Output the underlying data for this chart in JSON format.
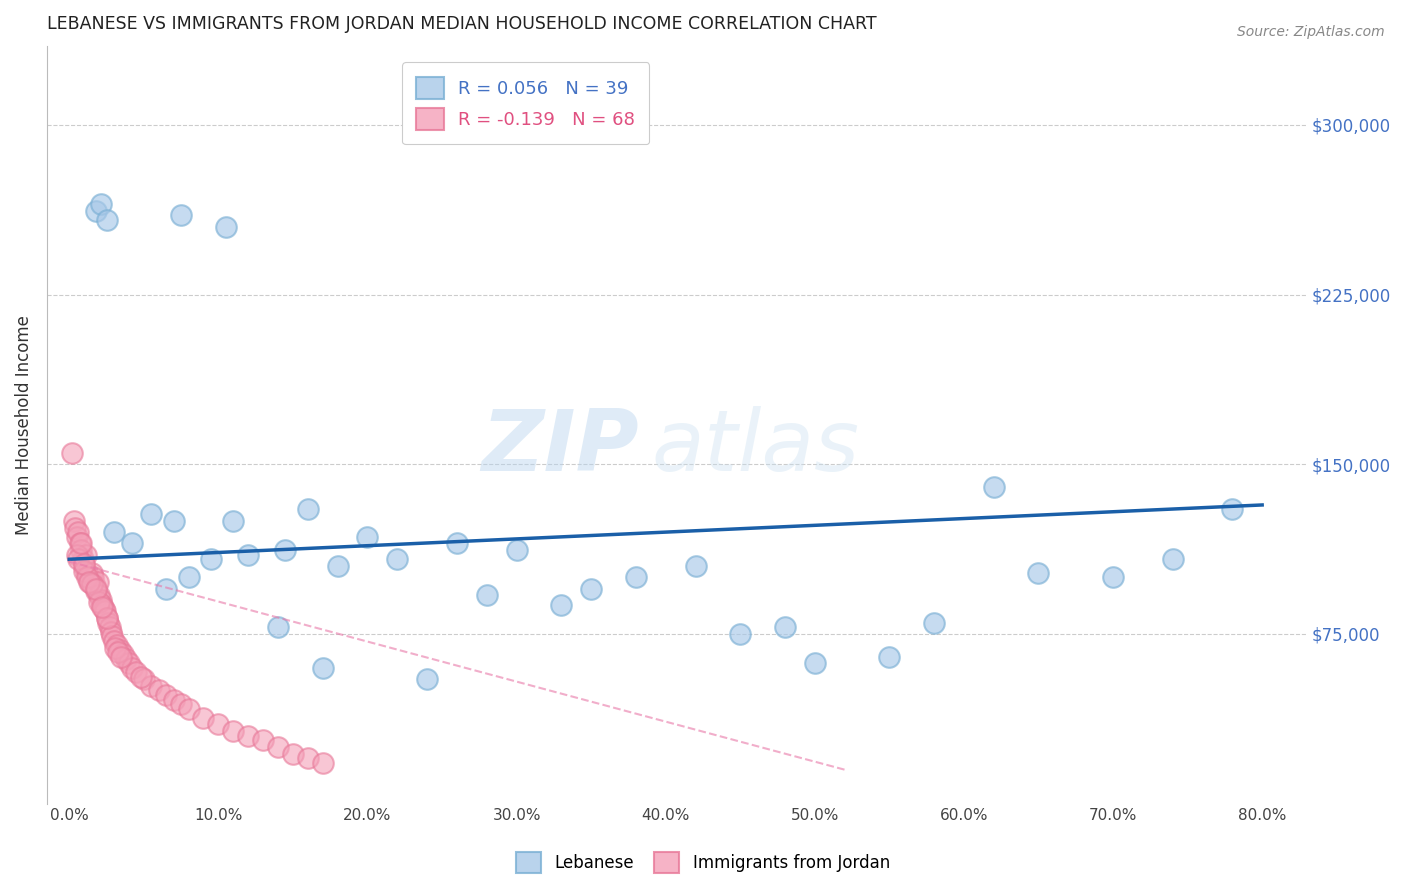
{
  "title": "LEBANESE VS IMMIGRANTS FROM JORDAN MEDIAN HOUSEHOLD INCOME CORRELATION CHART",
  "source": "Source: ZipAtlas.com",
  "ylabel": "Median Household Income",
  "watermark_zip": "ZIP",
  "watermark_atlas": "atlas",
  "legend_blue_r": "R = 0.056",
  "legend_blue_n": "N = 39",
  "legend_pink_r": "R = -0.139",
  "legend_pink_n": "N = 68",
  "ytick_labels": [
    "$75,000",
    "$150,000",
    "$225,000",
    "$300,000"
  ],
  "ytick_values": [
    75000,
    150000,
    225000,
    300000
  ],
  "xtick_labels": [
    "0.0%",
    "10.0%",
    "20.0%",
    "30.0%",
    "40.0%",
    "50.0%",
    "60.0%",
    "70.0%",
    "80.0%"
  ],
  "xtick_values": [
    0.0,
    10.0,
    20.0,
    30.0,
    40.0,
    50.0,
    60.0,
    70.0,
    80.0
  ],
  "ylim": [
    0,
    335000
  ],
  "xlim": [
    -1.5,
    83
  ],
  "blue_face_color": "#a8c8e8",
  "blue_edge_color": "#7aafd4",
  "pink_face_color": "#f4a0b8",
  "pink_edge_color": "#e87898",
  "trend_blue_color": "#1a5fa8",
  "trend_pink_color": "#e878a8",
  "grid_color": "#cccccc",
  "title_color": "#222222",
  "ytick_color": "#4472c4",
  "source_color": "#888888",
  "blue_x": [
    1.8,
    2.1,
    2.5,
    7.5,
    10.5,
    3.0,
    4.2,
    5.5,
    7.0,
    9.5,
    12.0,
    14.5,
    16.0,
    18.0,
    22.0,
    26.0,
    30.0,
    35.0,
    38.0,
    42.0,
    45.0,
    48.0,
    50.0,
    55.0,
    58.0,
    62.0,
    65.0,
    70.0,
    74.0,
    78.0,
    6.5,
    8.0,
    11.0,
    20.0,
    28.0,
    33.0,
    14.0,
    17.0,
    24.0
  ],
  "blue_y": [
    262000,
    265000,
    258000,
    260000,
    255000,
    120000,
    115000,
    128000,
    125000,
    108000,
    110000,
    112000,
    130000,
    105000,
    108000,
    115000,
    112000,
    95000,
    100000,
    105000,
    75000,
    78000,
    62000,
    65000,
    80000,
    140000,
    102000,
    100000,
    108000,
    130000,
    95000,
    100000,
    125000,
    118000,
    92000,
    88000,
    78000,
    60000,
    55000
  ],
  "pink_x": [
    0.2,
    0.3,
    0.4,
    0.5,
    0.6,
    0.7,
    0.8,
    0.9,
    1.0,
    1.1,
    1.2,
    1.3,
    1.4,
    1.5,
    1.6,
    1.7,
    1.8,
    1.9,
    2.0,
    2.1,
    2.2,
    2.3,
    2.4,
    2.5,
    2.6,
    2.7,
    2.8,
    2.9,
    3.0,
    3.2,
    3.4,
    3.6,
    3.8,
    4.0,
    4.2,
    4.5,
    5.0,
    5.5,
    6.0,
    6.5,
    7.0,
    7.5,
    8.0,
    9.0,
    10.0,
    11.0,
    12.0,
    13.0,
    14.0,
    15.0,
    16.0,
    17.0,
    3.1,
    3.3,
    3.5,
    4.8,
    0.5,
    0.6,
    1.0,
    1.2,
    1.5,
    2.0,
    2.5,
    0.8,
    1.0,
    1.3,
    1.8,
    2.2
  ],
  "pink_y": [
    155000,
    125000,
    122000,
    118000,
    120000,
    115000,
    112000,
    108000,
    105000,
    110000,
    102000,
    100000,
    98000,
    102000,
    100000,
    96000,
    94000,
    98000,
    92000,
    90000,
    88000,
    86000,
    85000,
    82000,
    80000,
    78000,
    76000,
    74000,
    72000,
    70000,
    68000,
    66000,
    64000,
    62000,
    60000,
    58000,
    55000,
    52000,
    50000,
    48000,
    46000,
    44000,
    42000,
    38000,
    35000,
    32000,
    30000,
    28000,
    25000,
    22000,
    20000,
    18000,
    69000,
    67000,
    65000,
    56000,
    110000,
    108000,
    103000,
    100000,
    97000,
    89000,
    82000,
    115000,
    106000,
    98000,
    95000,
    87000
  ],
  "blue_trend_x0": 0,
  "blue_trend_x1": 80,
  "blue_trend_y0": 108000,
  "blue_trend_y1": 132000,
  "pink_trend_x0": 0,
  "pink_trend_x1": 52,
  "pink_trend_y0": 107000,
  "pink_trend_y1": 15000
}
